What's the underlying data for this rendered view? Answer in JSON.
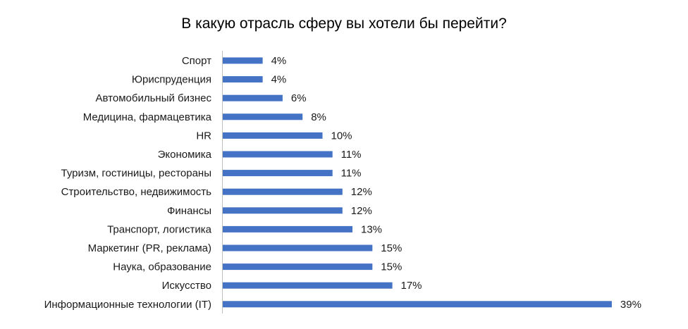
{
  "chart_data": {
    "type": "bar",
    "orientation": "horizontal",
    "title": "В какую отрасль сферу вы хотели бы перейти?",
    "xlabel": "",
    "ylabel": "",
    "grid": false,
    "legend": "none",
    "xlim": [
      0,
      39
    ],
    "categories": [
      "Спорт",
      "Юриспруденция",
      "Автомобильный бизнес",
      "Медицина, фармацевтика",
      "HR",
      "Экономика",
      "Туризм, гостиницы, рестораны",
      "Строительство, недвижимость",
      "Финансы",
      "Транспорт, логистика",
      "Маркетинг (PR, реклама)",
      "Наука, образование",
      "Искусство",
      "Информационные технологии (IT)"
    ],
    "values": [
      4,
      4,
      6,
      8,
      10,
      11,
      11,
      12,
      12,
      13,
      15,
      15,
      17,
      39
    ],
    "labels": [
      "4%",
      "4%",
      "6%",
      "8%",
      "10%",
      "11%",
      "11%",
      "12%",
      "12%",
      "13%",
      "15%",
      "15%",
      "17%",
      "39%"
    ],
    "bar_color": "#4472C4",
    "axis_color": "#BFBFBF"
  }
}
